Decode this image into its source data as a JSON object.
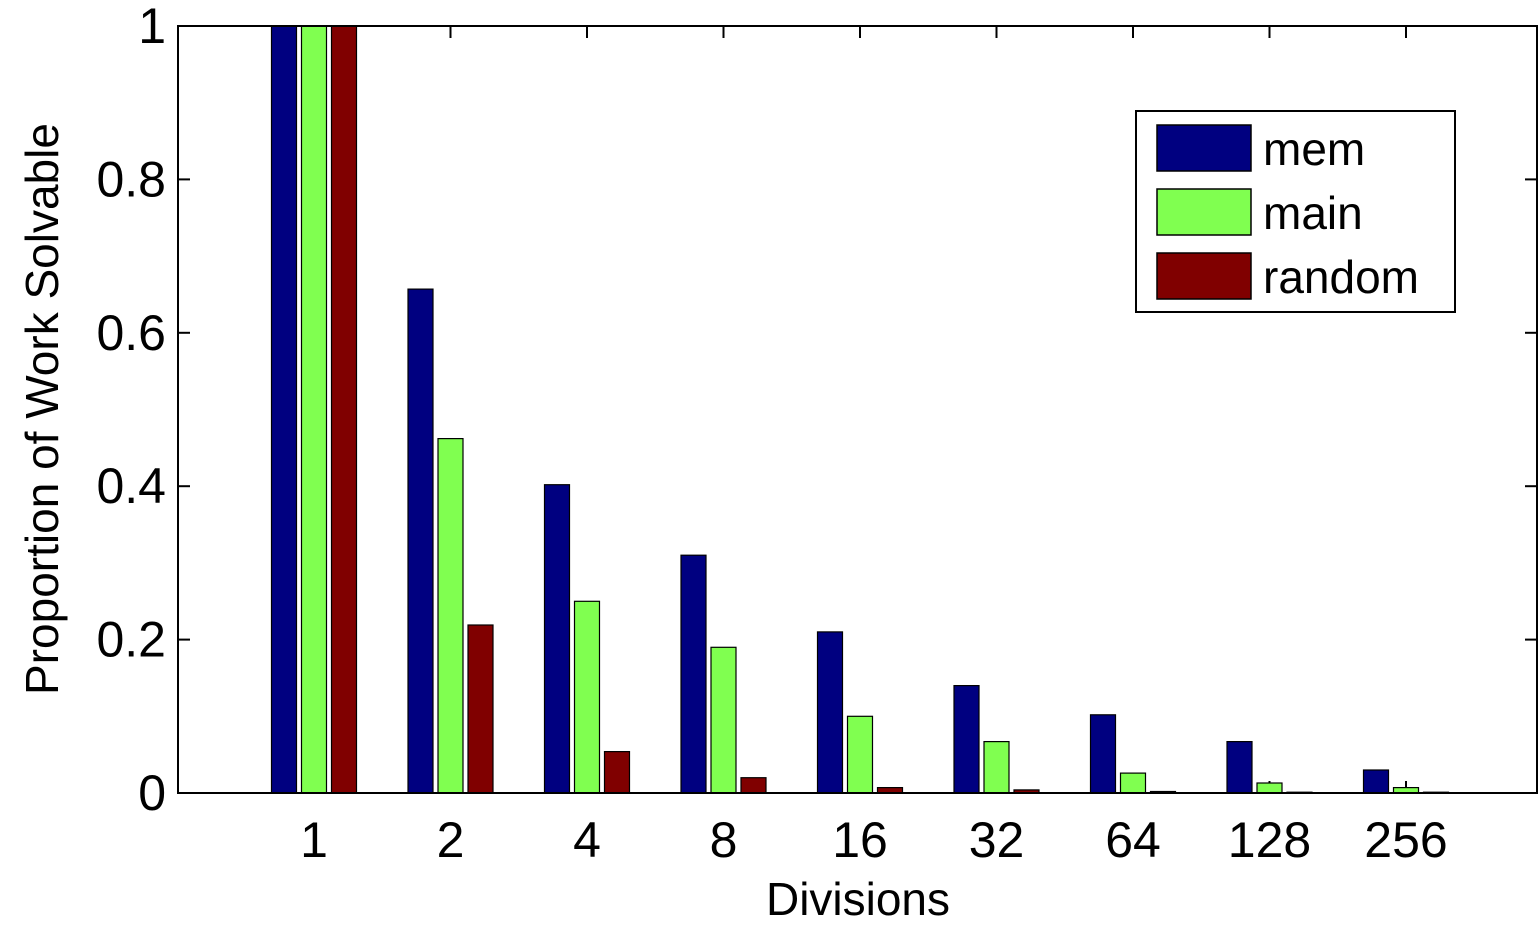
{
  "chart_data": {
    "type": "bar",
    "title": "",
    "xlabel": "Divisions",
    "ylabel": "Proportion of Work Solvable",
    "categories": [
      "1",
      "2",
      "4",
      "8",
      "16",
      "32",
      "64",
      "128",
      "256"
    ],
    "ylim": [
      0,
      1
    ],
    "yticks": [
      "0",
      "0.2",
      "0.4",
      "0.6",
      "0.8",
      "1"
    ],
    "grid": false,
    "legend_position": "top-right",
    "series": [
      {
        "name": "mem",
        "color": "#000080",
        "values": [
          1.0,
          0.657,
          0.402,
          0.31,
          0.21,
          0.14,
          0.102,
          0.067,
          0.03
        ]
      },
      {
        "name": "main",
        "color": "#80ff50",
        "values": [
          1.0,
          0.462,
          0.25,
          0.19,
          0.1,
          0.067,
          0.026,
          0.013,
          0.007
        ]
      },
      {
        "name": "random",
        "color": "#800000",
        "values": [
          1.0,
          0.219,
          0.054,
          0.02,
          0.007,
          0.004,
          0.002,
          0.001,
          0.001
        ]
      }
    ]
  }
}
